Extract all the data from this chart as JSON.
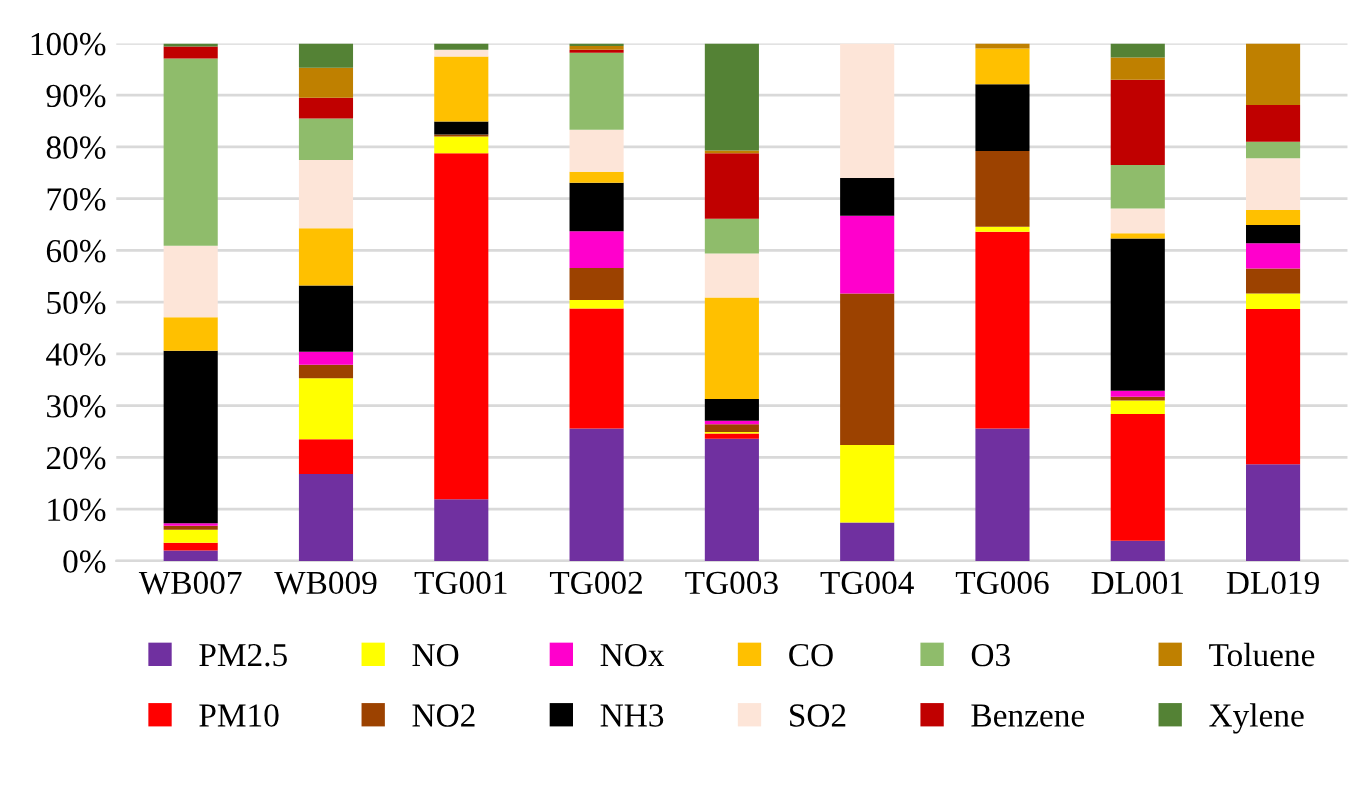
{
  "chart_data": {
    "type": "bar",
    "stacked": true,
    "categories": [
      "WB007",
      "WB009",
      "TG001",
      "TG002",
      "TG003",
      "TG004",
      "TG006",
      "DL001",
      "DL019"
    ],
    "series": [
      {
        "name": "PM2.5",
        "color": "#7030a0",
        "values": [
          2,
          16.8,
          11.9,
          25.6,
          23.6,
          7.4,
          25.6,
          3.9,
          18.7
        ]
      },
      {
        "name": "PM10",
        "color": "#ff0000",
        "values": [
          1.5,
          6.7,
          66.9,
          23.2,
          1.0,
          0,
          38.0,
          24.5,
          30.0
        ]
      },
      {
        "name": "NO",
        "color": "#ffff00",
        "values": [
          2.5,
          11.8,
          3.2,
          1.6,
          0.3,
          15.0,
          1.0,
          2.6,
          3.0
        ]
      },
      {
        "name": "NO2",
        "color": "#9c4200",
        "values": [
          0.8,
          2.6,
          0.4,
          6.2,
          1.5,
          29.3,
          14.6,
          0.7,
          4.8
        ]
      },
      {
        "name": "NOx",
        "color": "#ff00cc",
        "values": [
          0.5,
          2.5,
          0,
          7.1,
          0.7,
          15.0,
          0,
          1.2,
          4.9
        ]
      },
      {
        "name": "NH3",
        "color": "#000000",
        "values": [
          33.3,
          12.8,
          2.5,
          9.4,
          4.2,
          7.3,
          12.9,
          29.4,
          3.5
        ]
      },
      {
        "name": "CO",
        "color": "#ffc000",
        "values": [
          6.5,
          11.1,
          12.6,
          2.1,
          19.6,
          0,
          6.9,
          1.0,
          2.9
        ]
      },
      {
        "name": "SO2",
        "color": "#fde5d8",
        "values": [
          13.8,
          13.2,
          1.3,
          8.1,
          8.5,
          26.0,
          0,
          4.8,
          10.0
        ]
      },
      {
        "name": "O3",
        "color": "#8fbc6b",
        "values": [
          36.2,
          8.0,
          0,
          14.9,
          6.7,
          0,
          0,
          8.4,
          3.2
        ]
      },
      {
        "name": "Benzene",
        "color": "#c00000",
        "values": [
          2.3,
          4.0,
          0,
          0.6,
          12.7,
          0,
          0,
          16.5,
          7.1
        ]
      },
      {
        "name": "Toluene",
        "color": "#bf8000",
        "values": [
          0,
          5.8,
          0,
          0.7,
          0.5,
          0,
          1.0,
          4.3,
          11.9
        ]
      },
      {
        "name": "Xylene",
        "color": "#548235",
        "values": [
          0.6,
          4.7,
          1.2,
          0.5,
          20.7,
          0,
          0,
          2.7,
          0
        ]
      }
    ],
    "ylim": [
      0,
      100
    ],
    "yticks": [
      {
        "value": 0,
        "label": "0%"
      },
      {
        "value": 10,
        "label": "10%"
      },
      {
        "value": 20,
        "label": "20%"
      },
      {
        "value": 30,
        "label": "30%"
      },
      {
        "value": 40,
        "label": "40%"
      },
      {
        "value": 50,
        "label": "50%"
      },
      {
        "value": 60,
        "label": "60%"
      },
      {
        "value": 70,
        "label": "70%"
      },
      {
        "value": 80,
        "label": "80%"
      },
      {
        "value": 90,
        "label": "90%"
      },
      {
        "value": 100,
        "label": "100%"
      }
    ],
    "grid": "y",
    "legend": "bottom"
  }
}
